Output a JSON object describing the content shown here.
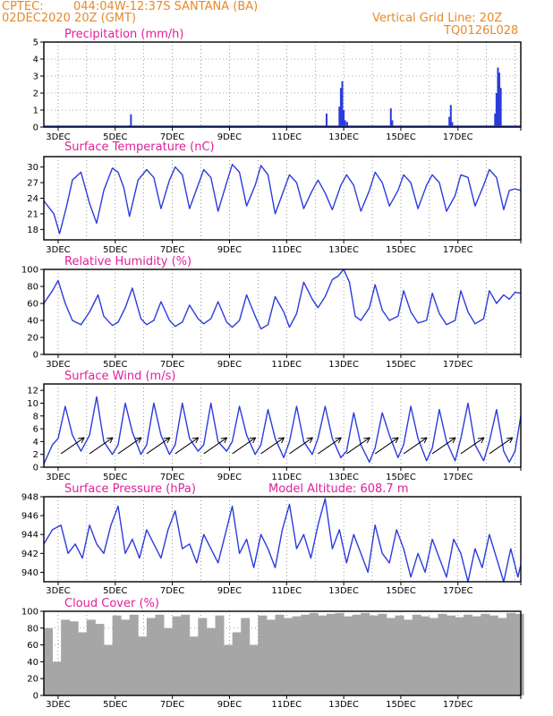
{
  "header": {
    "source": "CPTEC:",
    "location": "044:04W-12:37S  SANTANA (BA)",
    "run": "02DEC2020 20Z (GMT)",
    "grid_note": "Vertical Grid Line: 20Z",
    "code": "TQ0126L028"
  },
  "colors": {
    "header": "#e8892b",
    "panel_title": "#e0209a",
    "series": "#2b3cdc",
    "cloud": "#a6a6a6",
    "grid": "#555555"
  },
  "x_ticks": [
    "3DEC",
    "5DEC",
    "7DEC",
    "9DEC",
    "11DEC",
    "13DEC",
    "15DEC",
    "17DEC"
  ],
  "chart_data": [
    {
      "type": "bar",
      "title": "Precipitation (mm/h)",
      "ylim": [
        0,
        5
      ],
      "yticks": [
        "0",
        "1",
        "2",
        "3",
        "4",
        "5"
      ],
      "x_unit": "days since 02DEC 20Z",
      "series": [
        {
          "x": [
            0.5,
            3.0,
            3.05,
            6.5,
            9.9,
            10.35,
            10.4,
            10.45,
            10.5,
            10.55,
            10.62,
            12.15,
            12.2,
            14.2,
            14.25,
            14.3,
            15.8,
            15.85,
            15.9,
            15.95,
            16.0
          ],
          "values": [
            0.05,
            0.1,
            0.75,
            0.05,
            0.8,
            1.2,
            2.3,
            2.7,
            1.0,
            0.4,
            0.3,
            1.1,
            0.4,
            0.6,
            1.3,
            0.3,
            0.8,
            2.0,
            3.5,
            3.2,
            2.3
          ]
        }
      ]
    },
    {
      "type": "line",
      "title": "Surface Temperature (nC)",
      "ylim": [
        16,
        32
      ],
      "yticks": [
        "18",
        "21",
        "24",
        "27",
        "30"
      ],
      "series": [
        {
          "x": [
            0,
            0.35,
            0.55,
            0.8,
            1.0,
            1.3,
            1.6,
            1.85,
            2.1,
            2.4,
            2.6,
            2.8,
            3.0,
            3.3,
            3.6,
            3.85,
            4.1,
            4.4,
            4.6,
            4.85,
            5.1,
            5.4,
            5.6,
            5.85,
            6.1,
            6.4,
            6.6,
            6.85,
            7.1,
            7.4,
            7.6,
            7.85,
            8.1,
            8.4,
            8.6,
            8.85,
            9.1,
            9.4,
            9.6,
            9.85,
            10.1,
            10.4,
            10.6,
            10.85,
            11.1,
            11.4,
            11.6,
            11.85,
            12.1,
            12.4,
            12.6,
            12.85,
            13.1,
            13.4,
            13.6,
            13.85,
            14.1,
            14.4,
            14.6,
            14.85,
            15.1,
            15.4,
            15.6,
            15.85,
            16.1,
            16.3,
            16.5,
            16.7
          ],
          "values": [
            23.5,
            21.0,
            17.2,
            22.5,
            27.5,
            29.0,
            23.0,
            19.2,
            25.5,
            29.8,
            29.0,
            26.0,
            20.5,
            27.5,
            29.5,
            28.0,
            22.0,
            27.5,
            30.0,
            28.5,
            22.0,
            26.5,
            29.5,
            28.0,
            21.5,
            27.0,
            30.5,
            29.0,
            22.5,
            26.5,
            30.3,
            28.5,
            21.0,
            25.5,
            28.5,
            27.0,
            22.0,
            25.5,
            27.5,
            25.0,
            21.8,
            26.5,
            28.5,
            26.5,
            21.5,
            25.5,
            29.0,
            27.0,
            22.5,
            25.5,
            28.5,
            27.0,
            22.0,
            26.5,
            28.5,
            27.0,
            21.5,
            24.5,
            28.5,
            28.0,
            22.5,
            26.5,
            29.5,
            28.0,
            21.8,
            25.5,
            25.8,
            25.5
          ]
        }
      ]
    },
    {
      "type": "line",
      "title": "Relative Humidity (%)",
      "ylim": [
        0,
        100
      ],
      "yticks": [
        "0",
        "20",
        "40",
        "60",
        "80",
        "100"
      ],
      "series": [
        {
          "x": [
            0,
            0.3,
            0.5,
            0.75,
            1.0,
            1.3,
            1.6,
            1.9,
            2.1,
            2.4,
            2.6,
            2.85,
            3.1,
            3.4,
            3.6,
            3.85,
            4.1,
            4.4,
            4.6,
            4.85,
            5.1,
            5.4,
            5.6,
            5.85,
            6.1,
            6.4,
            6.6,
            6.85,
            7.1,
            7.4,
            7.6,
            7.85,
            8.1,
            8.4,
            8.6,
            8.85,
            9.1,
            9.4,
            9.6,
            9.85,
            10.1,
            10.3,
            10.5,
            10.7,
            10.9,
            11.1,
            11.4,
            11.6,
            11.85,
            12.1,
            12.4,
            12.6,
            12.85,
            13.1,
            13.4,
            13.6,
            13.85,
            14.1,
            14.4,
            14.6,
            14.85,
            15.1,
            15.4,
            15.6,
            15.85,
            16.1,
            16.3,
            16.5,
            16.7
          ],
          "values": [
            60,
            75,
            87,
            60,
            40,
            35,
            50,
            70,
            45,
            34,
            38,
            55,
            78,
            42,
            35,
            40,
            62,
            40,
            33,
            38,
            58,
            42,
            36,
            42,
            62,
            38,
            32,
            40,
            70,
            45,
            30,
            35,
            68,
            50,
            32,
            48,
            85,
            65,
            55,
            68,
            88,
            92,
            100,
            85,
            45,
            40,
            55,
            82,
            52,
            40,
            45,
            75,
            50,
            37,
            40,
            72,
            48,
            35,
            40,
            75,
            50,
            36,
            42,
            75,
            60,
            70,
            65,
            73,
            72
          ]
        }
      ]
    },
    {
      "type": "line",
      "title": "Surface Wind (m/s)",
      "ylim": [
        0,
        13
      ],
      "yticks": [
        "0",
        "2",
        "4",
        "6",
        "8",
        "10",
        "12"
      ],
      "series": [
        {
          "x": [
            0,
            0.3,
            0.5,
            0.75,
            1.0,
            1.3,
            1.6,
            1.85,
            2.1,
            2.4,
            2.6,
            2.85,
            3.1,
            3.4,
            3.6,
            3.85,
            4.1,
            4.4,
            4.6,
            4.85,
            5.1,
            5.4,
            5.6,
            5.85,
            6.1,
            6.4,
            6.6,
            6.85,
            7.1,
            7.4,
            7.6,
            7.85,
            8.1,
            8.4,
            8.6,
            8.85,
            9.1,
            9.4,
            9.6,
            9.85,
            10.1,
            10.4,
            10.6,
            10.85,
            11.1,
            11.4,
            11.6,
            11.85,
            12.1,
            12.4,
            12.6,
            12.85,
            13.1,
            13.4,
            13.6,
            13.85,
            14.1,
            14.4,
            14.6,
            14.85,
            15.1,
            15.4,
            15.6,
            15.85,
            16.1,
            16.3,
            16.5,
            16.7
          ],
          "values": [
            0.5,
            3.5,
            4.5,
            9.5,
            5.0,
            2.5,
            5.0,
            11.0,
            4.0,
            2.0,
            3.5,
            10.0,
            5.5,
            2.0,
            3.5,
            10.0,
            5.0,
            2.0,
            3.5,
            10.0,
            4.5,
            2.5,
            3.5,
            10.0,
            4.0,
            2.5,
            4.0,
            9.5,
            5.0,
            2.0,
            3.5,
            9.0,
            4.5,
            1.5,
            4.0,
            9.5,
            4.0,
            2.0,
            4.5,
            9.5,
            4.5,
            1.5,
            2.5,
            8.5,
            3.5,
            0.8,
            3.0,
            8.5,
            5.0,
            1.5,
            3.5,
            9.5,
            4.5,
            1.0,
            3.0,
            9.0,
            4.0,
            1.0,
            4.5,
            10.0,
            3.5,
            1.0,
            4.0,
            9.0,
            2.5,
            0.8,
            2.5,
            8.0
          ]
        }
      ]
    },
    {
      "type": "line",
      "title": "Surface Pressure (hPa)",
      "annotation": "Model Altitude: 608.7  m",
      "ylim": [
        939,
        948
      ],
      "yticks": [
        "940",
        "942",
        "944",
        "946",
        "948"
      ],
      "series": [
        {
          "x": [
            0,
            0.3,
            0.6,
            0.85,
            1.1,
            1.35,
            1.6,
            1.85,
            2.1,
            2.35,
            2.6,
            2.85,
            3.1,
            3.35,
            3.6,
            3.85,
            4.1,
            4.35,
            4.6,
            4.85,
            5.1,
            5.35,
            5.6,
            5.85,
            6.1,
            6.35,
            6.6,
            6.85,
            7.1,
            7.35,
            7.6,
            7.85,
            8.1,
            8.35,
            8.6,
            8.85,
            9.1,
            9.35,
            9.6,
            9.85,
            10.1,
            10.35,
            10.6,
            10.85,
            11.1,
            11.35,
            11.6,
            11.85,
            12.1,
            12.35,
            12.6,
            12.85,
            13.1,
            13.35,
            13.6,
            13.85,
            14.1,
            14.35,
            14.6,
            14.85,
            15.1,
            15.35,
            15.6,
            15.85,
            16.1,
            16.35,
            16.6,
            16.7
          ],
          "values": [
            943.0,
            944.5,
            945.0,
            942.0,
            943.0,
            941.5,
            945.0,
            943.0,
            942.0,
            945.0,
            947.0,
            942.0,
            943.5,
            941.5,
            944.5,
            943.0,
            941.5,
            944.5,
            946.5,
            942.5,
            943.0,
            941.0,
            944.0,
            942.5,
            941.0,
            944.0,
            947.0,
            942.0,
            943.5,
            940.5,
            944.0,
            942.5,
            940.5,
            944.5,
            947.2,
            942.5,
            944.0,
            941.5,
            945.0,
            947.8,
            942.5,
            944.5,
            941.0,
            944.0,
            942.0,
            940.0,
            945.0,
            942.0,
            941.0,
            944.5,
            942.5,
            939.5,
            942.0,
            940.0,
            943.5,
            941.5,
            939.5,
            943.5,
            942.0,
            939.0,
            942.5,
            940.5,
            944.0,
            941.5,
            939.0,
            942.5,
            939.5,
            940.8
          ]
        }
      ]
    },
    {
      "type": "bar",
      "title": "Cloud Cover (%)",
      "ylim": [
        0,
        100
      ],
      "yticks": [
        "0",
        "20",
        "40",
        "60",
        "80",
        "100"
      ],
      "series": [
        {
          "x": [
            0,
            0.3,
            0.6,
            0.9,
            1.2,
            1.5,
            1.8,
            2.1,
            2.4,
            2.7,
            3.0,
            3.3,
            3.6,
            3.9,
            4.2,
            4.5,
            4.8,
            5.1,
            5.4,
            5.7,
            6.0,
            6.3,
            6.6,
            6.9,
            7.2,
            7.5,
            7.8,
            8.1,
            8.4,
            8.7,
            9.0,
            9.3,
            9.6,
            9.9,
            10.2,
            10.5,
            10.8,
            11.1,
            11.4,
            11.7,
            12.0,
            12.3,
            12.6,
            12.9,
            13.2,
            13.5,
            13.8,
            14.1,
            14.4,
            14.7,
            15.0,
            15.3,
            15.6,
            15.9,
            16.2,
            16.5
          ],
          "values": [
            80,
            40,
            90,
            88,
            75,
            90,
            85,
            60,
            95,
            90,
            96,
            70,
            92,
            96,
            80,
            94,
            96,
            70,
            92,
            80,
            95,
            60,
            75,
            92,
            60,
            95,
            90,
            96,
            92,
            94,
            96,
            98,
            95,
            97,
            98,
            94,
            96,
            98,
            95,
            97,
            92,
            95,
            90,
            96,
            94,
            92,
            97,
            95,
            93,
            96,
            94,
            97,
            95,
            92,
            98,
            97
          ]
        }
      ]
    }
  ]
}
